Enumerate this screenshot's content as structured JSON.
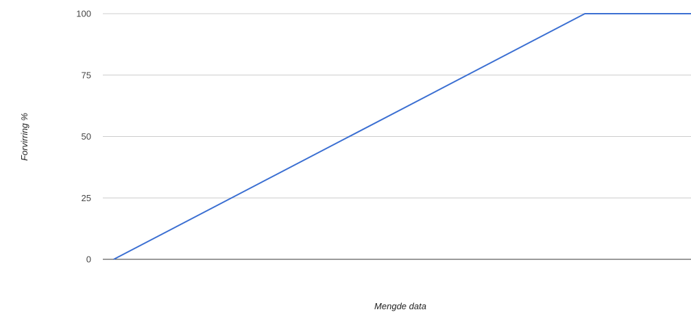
{
  "chart_data": {
    "type": "line",
    "xlabel": "Mengde data",
    "ylabel": "Forvirring %",
    "ylim": [
      0,
      100
    ],
    "yticks": [
      "0",
      "25",
      "50",
      "75",
      "100"
    ],
    "xlim": [
      0,
      11
    ],
    "x_axis_labels_visible": false,
    "grid": true,
    "series": [
      {
        "color": "#3b6fd2",
        "x": [
          1,
          9,
          11
        ],
        "y": [
          0,
          100,
          100
        ]
      }
    ]
  }
}
